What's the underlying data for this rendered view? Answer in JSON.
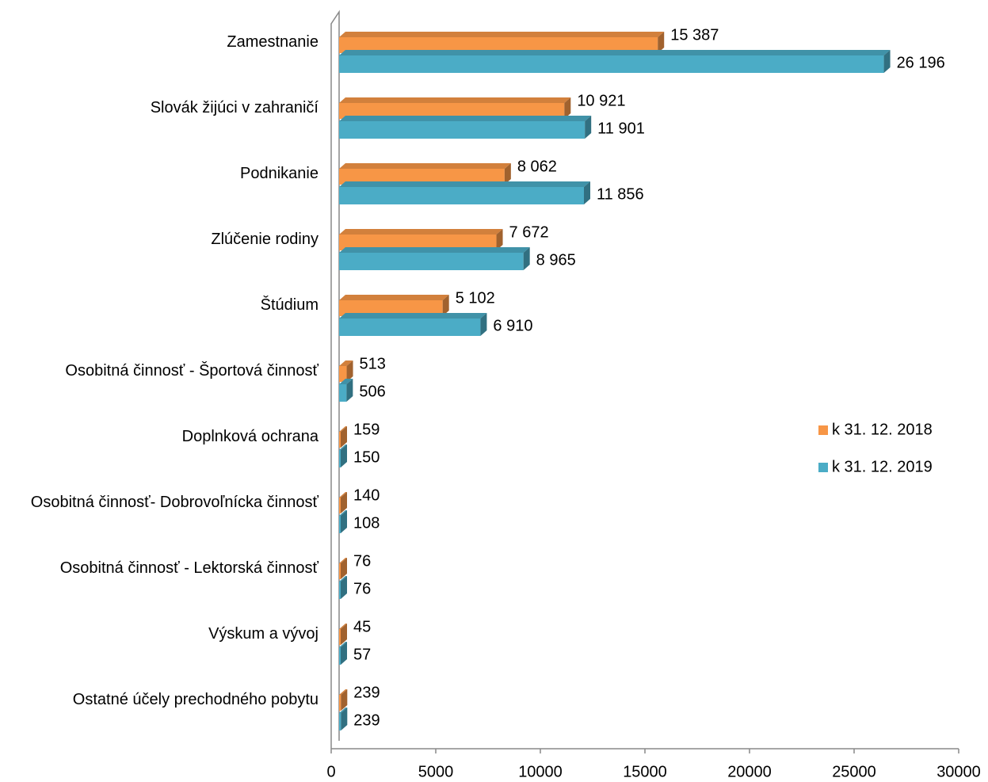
{
  "chart_data": {
    "type": "bar",
    "orientation": "horizontal",
    "categories": [
      "Zamestnanie",
      "Slovák žijúci v zahraničí",
      "Podnikanie",
      "Zlúčenie rodiny",
      "Štúdium",
      "Osobitná činnosť - Športová činnosť",
      "Doplnková ochrana",
      "Osobitná činnosť- Dobrovoľnícka činnosť",
      "Osobitná činnosť - Lektorská činnosť",
      "Výskum a vývoj",
      "Ostatné účely prechodného pobytu"
    ],
    "series": [
      {
        "name": "k 31. 12. 2018",
        "color": "#f79646",
        "values": [
          15387,
          10921,
          8062,
          7672,
          5102,
          513,
          159,
          140,
          76,
          45,
          239
        ],
        "value_labels": [
          "15 387",
          "10 921",
          "8 062",
          "7 672",
          "5 102",
          "513",
          "159",
          "140",
          "76",
          "45",
          "239"
        ]
      },
      {
        "name": "k 31. 12. 2019",
        "color": "#4bacc6",
        "values": [
          26196,
          11901,
          11856,
          8965,
          6910,
          506,
          150,
          108,
          76,
          57,
          239
        ],
        "value_labels": [
          "26 196",
          "11 901",
          "11 856",
          "8 965",
          "6 910",
          "506",
          "150",
          "108",
          "76",
          "57",
          "239"
        ]
      }
    ],
    "xlim": [
      0,
      30000
    ],
    "xticks": [
      0,
      5000,
      10000,
      15000,
      20000,
      25000,
      30000
    ],
    "legend": "right"
  }
}
